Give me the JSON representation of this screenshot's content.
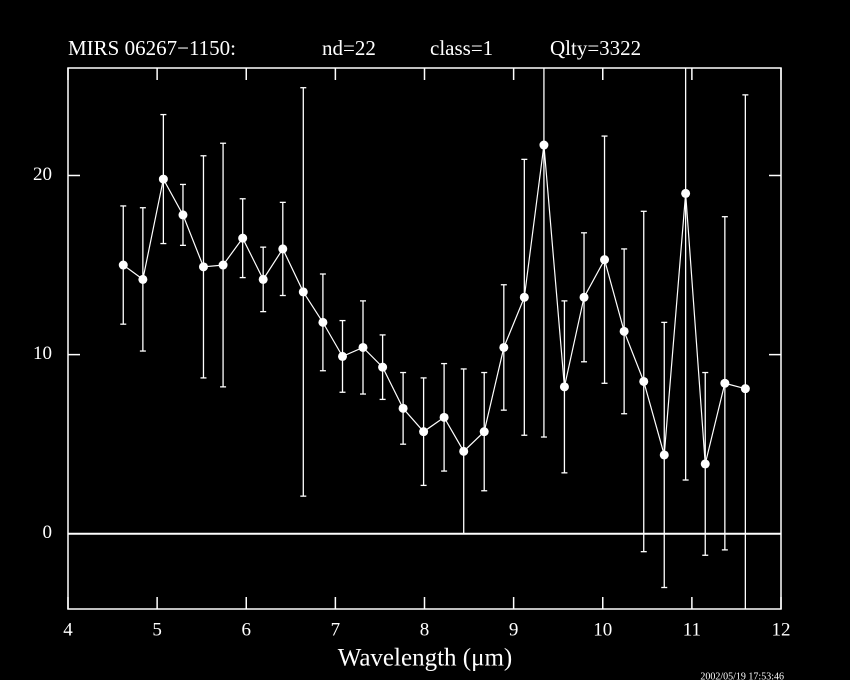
{
  "chart_data": {
    "type": "errorbar",
    "title_parts": [
      "MIRS 06267−1150:",
      "nd=22",
      "class=1",
      "Qlty=3322"
    ],
    "xlabel": "Wavelength (μm)",
    "timestamp": "2002/05/19 17:53:46",
    "xlim": [
      4,
      12
    ],
    "ylim": [
      -4.2,
      26
    ],
    "xticks": [
      4,
      5,
      6,
      7,
      8,
      9,
      10,
      11,
      12
    ],
    "yticks": [
      0,
      10,
      20
    ],
    "reference_line": 0,
    "color": "#ffffff",
    "x": [
      4.62,
      4.84,
      5.07,
      5.29,
      5.52,
      5.74,
      5.96,
      6.19,
      6.41,
      6.64,
      6.86,
      7.08,
      7.31,
      7.53,
      7.76,
      7.99,
      8.22,
      8.44,
      8.67,
      8.89,
      9.12,
      9.34,
      9.57,
      9.79,
      10.02,
      10.24,
      10.46,
      10.69,
      10.93,
      11.15,
      11.37,
      11.6
    ],
    "values": [
      15.0,
      14.2,
      19.8,
      17.8,
      14.9,
      15.0,
      16.5,
      14.2,
      15.9,
      13.5,
      11.8,
      9.9,
      10.4,
      9.3,
      7.0,
      5.7,
      6.5,
      4.6,
      5.7,
      10.4,
      13.2,
      21.7,
      8.2,
      13.2,
      15.3,
      11.3,
      8.5,
      4.4,
      19.0,
      3.9,
      8.4,
      8.1
    ],
    "errors": [
      3.3,
      4.0,
      3.6,
      1.7,
      6.2,
      6.8,
      2.2,
      1.8,
      2.6,
      11.4,
      2.7,
      2.0,
      2.6,
      1.8,
      2.0,
      3.0,
      3.0,
      4.6,
      3.3,
      3.5,
      7.7,
      16.3,
      4.8,
      3.6,
      6.9,
      4.6,
      9.5,
      7.4,
      16.0,
      5.1,
      9.3,
      16.4
    ]
  }
}
